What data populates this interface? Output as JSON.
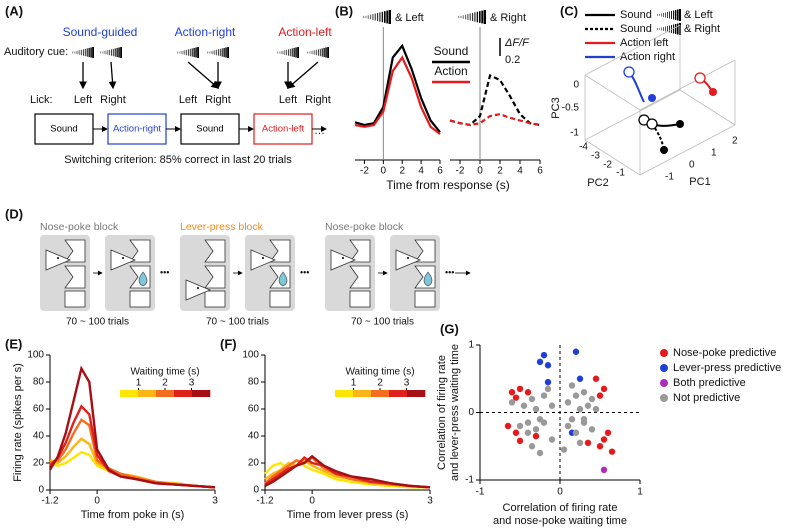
{
  "panel_a": {
    "label": "(A)",
    "headers": [
      "Sound-guided",
      "Action-right",
      "Action-left"
    ],
    "cue_label": "Auditory cue:",
    "lick_label": "Lick:",
    "licks": [
      "Left",
      "Right",
      "Left",
      "Right",
      "Left",
      "Right"
    ],
    "flow": [
      "Sound",
      "Action-right",
      "Sound",
      "Action-left"
    ],
    "criterion": "Switching criterion: 85% correct in last 20 trials"
  },
  "panel_c": {
    "label": "(C)",
    "legend": [
      {
        "name": "Sound",
        "suffix": "& Left",
        "color": "#000000",
        "dash": false
      },
      {
        "name": "Sound",
        "suffix": "& Right",
        "color": "#000000",
        "dash": true
      },
      {
        "name": "Action left",
        "color": "#e41a1c",
        "dash": false
      },
      {
        "name": "Action right",
        "color": "#1f3fd6",
        "dash": false
      }
    ],
    "pc3": {
      "label": "PC3",
      "ticks": [
        0,
        -0.5,
        -1
      ]
    },
    "pc2": {
      "label": "PC2",
      "ticks": [
        -4,
        -3,
        -2,
        -1
      ]
    },
    "pc1": {
      "label": "PC1",
      "ticks": [
        -1,
        0,
        1,
        2
      ]
    }
  },
  "panel_d": {
    "label": "(D)",
    "blocks": [
      {
        "name": "Nose-poke block",
        "color": "#777777",
        "trials": "70 ~ 100 trials"
      },
      {
        "name": "Lever-press block",
        "color": "#f08a1c",
        "trials": "70 ~ 100 trials"
      },
      {
        "name": "Nose-poke block",
        "color": "#777777",
        "trials": "70 ~ 100 trials"
      }
    ]
  },
  "chart_data": [
    {
      "type": "line",
      "panel": "(B)",
      "title": "& Left",
      "x": [
        -3,
        -2,
        -1,
        0,
        1,
        2,
        3,
        4,
        5,
        6
      ],
      "series": [
        {
          "name": "Sound",
          "color": "#000000",
          "dash": false,
          "values": [
            0.03,
            0.0,
            0.02,
            0.2,
            0.75,
            0.88,
            0.62,
            0.3,
            0.05,
            -0.08
          ]
        },
        {
          "name": "Action",
          "color": "#e41a1c",
          "dash": false,
          "values": [
            0.0,
            -0.02,
            0.0,
            0.15,
            0.6,
            0.75,
            0.52,
            0.2,
            -0.02,
            -0.1
          ]
        }
      ],
      "xlim": [
        -3,
        6
      ],
      "xticks": [
        -2,
        0,
        2,
        4,
        6
      ],
      "ylim": [
        -0.2,
        1.0
      ],
      "x_label": "Time from response (s)"
    },
    {
      "type": "line",
      "title": "& Right",
      "x": [
        -3,
        -2,
        -1,
        0,
        1,
        2,
        3,
        4,
        5,
        6
      ],
      "series": [
        {
          "color": "#000000",
          "dash": true,
          "values": [
            0.05,
            0.02,
            0.0,
            0.1,
            0.55,
            0.5,
            0.32,
            0.12,
            0.02,
            0.0
          ]
        },
        {
          "color": "#e41a1c",
          "dash": true,
          "values": [
            0.05,
            0.02,
            0.0,
            0.02,
            0.1,
            0.12,
            0.08,
            0.05,
            0.02,
            0.0
          ]
        }
      ],
      "xlim": [
        -3,
        6
      ],
      "xticks": [
        -2,
        0,
        2,
        4,
        6
      ],
      "ylim": [
        -0.2,
        1.0
      ],
      "scale_bar": {
        "label": "ΔF/F",
        "value": 0.2
      }
    },
    {
      "type": "line",
      "panel": "(E)",
      "x": [
        -1.2,
        -1,
        -0.8,
        -0.6,
        -0.4,
        -0.2,
        0,
        0.3,
        0.6,
        1,
        1.5,
        2,
        2.5,
        3
      ],
      "series": [
        {
          "color": "#ffe600",
          "values": [
            20,
            18,
            20,
            24,
            28,
            26,
            18,
            14,
            12,
            9,
            6,
            5,
            3,
            2
          ]
        },
        {
          "color": "#fdb515",
          "values": [
            22,
            20,
            25,
            32,
            38,
            34,
            20,
            15,
            12,
            10,
            6,
            5,
            3,
            2
          ]
        },
        {
          "color": "#f46d1f",
          "values": [
            20,
            22,
            30,
            42,
            52,
            48,
            22,
            16,
            12,
            9,
            6,
            4,
            3,
            2
          ]
        },
        {
          "color": "#e0201b",
          "values": [
            18,
            24,
            35,
            50,
            62,
            56,
            26,
            14,
            10,
            8,
            5,
            4,
            3,
            2
          ]
        },
        {
          "color": "#a50f15",
          "values": [
            15,
            25,
            42,
            66,
            90,
            80,
            30,
            15,
            10,
            8,
            5,
            4,
            3,
            2
          ]
        }
      ],
      "xlim": [
        -1.2,
        3
      ],
      "xticks": [
        -1.2,
        0,
        3
      ],
      "ylim": [
        0,
        100
      ],
      "yticks": [
        0,
        20,
        40,
        60,
        80,
        100
      ],
      "x_label": "Time from poke in (s)",
      "y_label": "Firing rate (spikes per s)",
      "colorbar": {
        "title": "Waiting time (s)",
        "lim": [
          0.3,
          3.7
        ],
        "ticks": [
          1,
          2,
          3
        ]
      }
    },
    {
      "type": "line",
      "panel": "(F)",
      "x": [
        -1.2,
        -1,
        -0.8,
        -0.6,
        -0.4,
        -0.2,
        0,
        0.3,
        0.6,
        1,
        1.5,
        2,
        2.5,
        3
      ],
      "series": [
        {
          "color": "#ffe600",
          "values": [
            12,
            18,
            20,
            15,
            22,
            18,
            15,
            12,
            8,
            6,
            4,
            3,
            2,
            2
          ]
        },
        {
          "color": "#fdb515",
          "values": [
            8,
            12,
            15,
            20,
            18,
            22,
            18,
            14,
            10,
            8,
            5,
            4,
            3,
            2
          ]
        },
        {
          "color": "#f46d1f",
          "values": [
            5,
            10,
            14,
            18,
            22,
            20,
            24,
            16,
            12,
            8,
            6,
            4,
            3,
            2
          ]
        },
        {
          "color": "#e0201b",
          "values": [
            4,
            8,
            12,
            16,
            18,
            24,
            20,
            18,
            12,
            10,
            6,
            5,
            3,
            2
          ]
        },
        {
          "color": "#a50f15",
          "values": [
            3,
            6,
            10,
            14,
            18,
            20,
            25,
            18,
            14,
            10,
            8,
            5,
            3,
            2
          ]
        }
      ],
      "xlim": [
        -1.2,
        3
      ],
      "xticks": [
        -1.2,
        0,
        3
      ],
      "ylim": [
        0,
        100
      ],
      "yticks": [
        0,
        20,
        40,
        60,
        80,
        100
      ],
      "x_label": "Time from lever press (s)",
      "colorbar": {
        "title": "Waiting time (s)",
        "lim": [
          0.3,
          3.7
        ],
        "ticks": [
          1,
          2,
          3
        ]
      }
    },
    {
      "type": "scatter",
      "panel": "(G)",
      "series": [
        {
          "name": "Nose-poke predictive",
          "color": "#e41a1c",
          "x": [
            -0.6,
            -0.5,
            -0.55,
            -0.4,
            -0.65,
            -0.55,
            -0.5,
            -0.3,
            0.45,
            0.55,
            0.5,
            0.6,
            0.55,
            0.5,
            0.35,
            0.65
          ],
          "y": [
            0.3,
            0.35,
            0.22,
            0.3,
            -0.2,
            -0.3,
            -0.42,
            -0.35,
            0.5,
            0.35,
            0.25,
            -0.3,
            -0.4,
            -0.5,
            -0.45,
            -0.58
          ]
        },
        {
          "name": "Lever-press predictive",
          "color": "#1f3fd6",
          "x": [
            -0.2,
            -0.25,
            -0.15,
            0.2,
            0.25,
            -0.15,
            0.15
          ],
          "y": [
            0.85,
            0.75,
            0.7,
            0.9,
            0.5,
            0.45,
            -0.3
          ]
        },
        {
          "name": "Both predictive",
          "color": "#b02ab8",
          "x": [
            0.55
          ],
          "y": [
            -0.85
          ]
        },
        {
          "name": "Not predictive",
          "color": "#999999",
          "x": [
            -0.6,
            -0.45,
            -0.35,
            -0.3,
            -0.2,
            -0.1,
            -0.25,
            -0.4,
            -0.15,
            0.1,
            0.2,
            0.3,
            0.35,
            0.4,
            0.25,
            0.15,
            0.45,
            0.3,
            -0.5,
            -0.4,
            -0.3,
            -0.2,
            -0.1,
            -0.35,
            0.1,
            0.2,
            0.3,
            0.4,
            0.25,
            0.15,
            -0.25,
            0.05
          ],
          "y": [
            0.15,
            0.1,
            0.2,
            0.05,
            0.25,
            0.1,
            -0.1,
            -0.15,
            0.35,
            0.15,
            0.25,
            0.3,
            0.1,
            0.2,
            0.05,
            0.4,
            0.05,
            -0.1,
            -0.2,
            -0.3,
            -0.25,
            -0.15,
            -0.4,
            -0.5,
            -0.2,
            -0.3,
            -0.15,
            -0.25,
            -0.45,
            -0.1,
            -0.6,
            -0.55
          ]
        }
      ],
      "xlim": [
        -1,
        1
      ],
      "ylim": [
        -1,
        1
      ],
      "xticks": [
        -1,
        0,
        1
      ],
      "yticks": [
        -1,
        0,
        1
      ],
      "x_label": [
        "Correlation of firing rate",
        "and nose-poke waiting time"
      ],
      "y_label": [
        "Correlation of firing rate",
        "and lever-press waiting time"
      ]
    }
  ]
}
